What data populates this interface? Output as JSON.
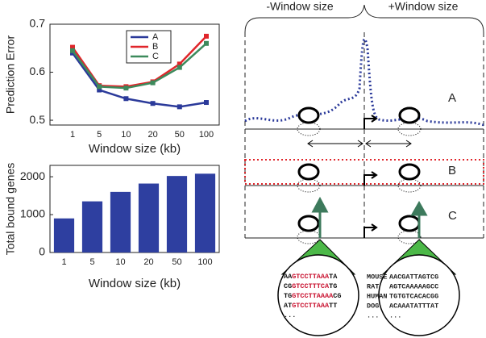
{
  "chart_data": [
    {
      "type": "line",
      "ylabel": "Prediction Error",
      "xlabel": "Window size (kb)",
      "categories": [
        "1",
        "5",
        "10",
        "20",
        "50",
        "100"
      ],
      "series": [
        {
          "name": "A",
          "color": "#2b3a9a",
          "values": [
            0.64,
            0.563,
            0.545,
            0.535,
            0.528,
            0.537
          ]
        },
        {
          "name": "B",
          "color": "#e0262b",
          "values": [
            0.652,
            0.572,
            0.57,
            0.58,
            0.617,
            0.675
          ]
        },
        {
          "name": "C",
          "color": "#3d8a5c",
          "values": [
            0.645,
            0.57,
            0.567,
            0.578,
            0.61,
            0.66
          ]
        }
      ],
      "ylim": [
        0.49,
        0.7
      ],
      "yticks": [
        0.5,
        0.6,
        0.7
      ],
      "legend": "upper-center"
    },
    {
      "type": "bar",
      "ylabel": "Total bound genes",
      "xlabel": "Window size (kb)",
      "categories": [
        "1",
        "5",
        "10",
        "20",
        "50",
        "100"
      ],
      "values": [
        900,
        1350,
        1600,
        1820,
        2020,
        2080
      ],
      "color": "#2e3fa0",
      "ylim": [
        0,
        2300
      ],
      "yticks": [
        0,
        1000,
        2000
      ]
    }
  ],
  "diagram": {
    "minus_window": "-Window size",
    "plus_window": "+Window size",
    "panels": [
      "A",
      "B",
      "C"
    ],
    "left_sequences": [
      [
        "AA",
        "GTCCTTAAA",
        "TA"
      ],
      [
        "CG",
        "GTCCTTTCA",
        "TG"
      ],
      [
        "TG",
        "GTCCTTAAAA",
        "CG"
      ],
      [
        "AT",
        "GTCCTTAAA",
        "TT"
      ],
      [
        "..."
      ]
    ],
    "species": [
      "MOUSE",
      "RAT",
      "HUMAN",
      "DOG",
      "..."
    ],
    "right_sequences": [
      "AACGATTAGTCG",
      "AGTCAAAAAGCC",
      "TGTGTCACACGG",
      "ACAAATATTTAT",
      "..."
    ]
  }
}
